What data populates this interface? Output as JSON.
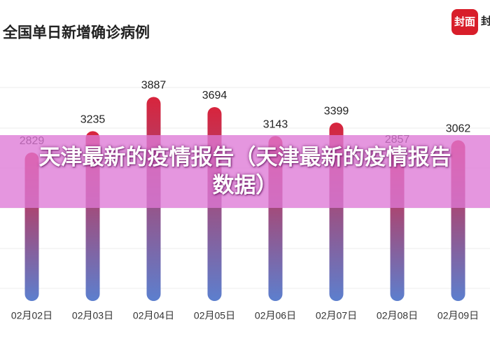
{
  "chart_data": {
    "type": "bar",
    "title": "全国单日新增确诊病例",
    "categories": [
      "02月02日",
      "02月03日",
      "02月04日",
      "02月05日",
      "02月06日",
      "02月07日",
      "02月08日",
      "02月09日"
    ],
    "values": [
      2829,
      3235,
      3887,
      3694,
      3143,
      3399,
      2857,
      3062
    ],
    "color": [
      "#d8243c",
      "#5c7fce"
    ],
    "ylim": [
      0,
      4000
    ],
    "grid": true
  },
  "banner": "天津最新的疫情报告（天津最新的疫情报告数据）",
  "logo": {
    "badge": "封面",
    "name": "封"
  }
}
